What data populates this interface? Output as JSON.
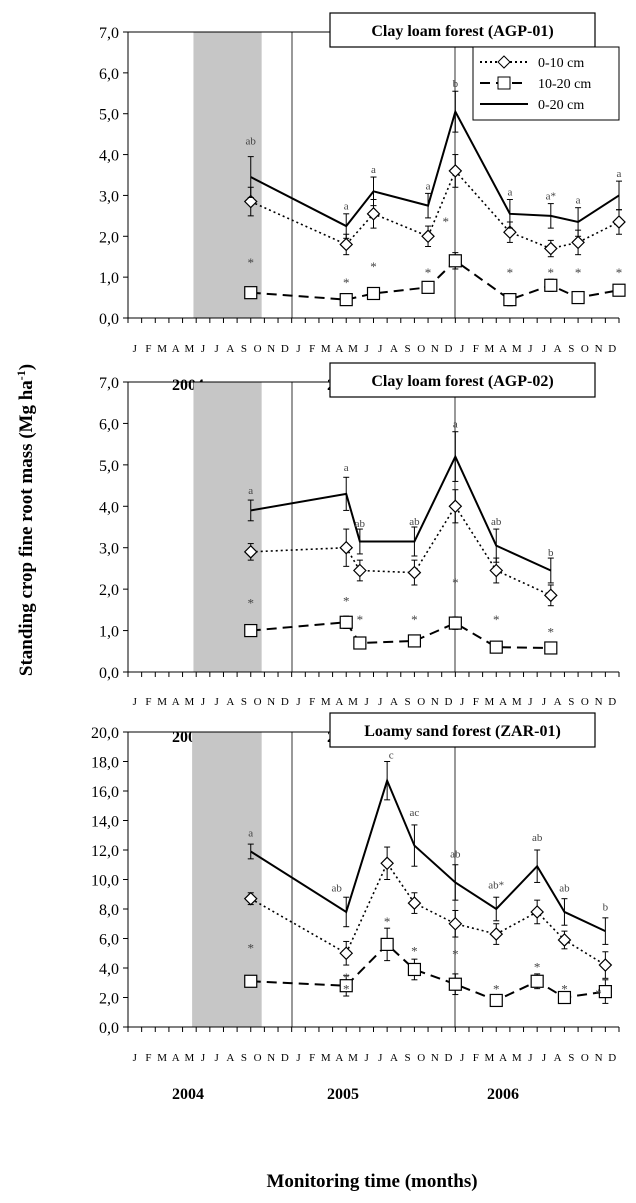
{
  "figure": {
    "ylabel": "Standing crop fine root mass (Mg ha",
    "ylabel_sup": "-1",
    "ylabel_tail": ")",
    "xlabel": "Monitoring time (months)"
  },
  "chart_data": [
    {
      "type": "line",
      "title": "Clay loam forest (AGP-01)",
      "ylim": [
        0,
        7
      ],
      "yticks": [
        "0,0",
        "1,0",
        "2,0",
        "3,0",
        "4,0",
        "5,0",
        "6,0",
        "7,0"
      ],
      "month_labels": [
        "J",
        "F",
        "M",
        "A",
        "M",
        "J",
        "J",
        "A",
        "S",
        "O",
        "N",
        "D",
        "J",
        "F",
        "M",
        "A",
        "M",
        "J",
        "J",
        "A",
        "S",
        "O",
        "N",
        "D",
        "J",
        "F",
        "M",
        "A",
        "M",
        "J",
        "J",
        "A",
        "S",
        "O",
        "N",
        "D"
      ],
      "years": [
        "2004",
        "2005",
        "2006"
      ],
      "dry_season_months": [
        4.8,
        9.8
      ],
      "series": [
        {
          "name": "0-10 cm",
          "style": "dotted",
          "marker": "diamond",
          "x": [
            9,
            16,
            18,
            22,
            24,
            28,
            31,
            33,
            36
          ],
          "values": [
            2.85,
            1.8,
            2.55,
            2.0,
            3.6,
            2.1,
            1.7,
            1.85,
            2.35
          ],
          "err": [
            0.35,
            0.25,
            0.35,
            0.25,
            0.4,
            0.25,
            0.2,
            0.3,
            0.3
          ]
        },
        {
          "name": "10-20 cm",
          "style": "dashed",
          "marker": "square",
          "x": [
            9,
            16,
            18,
            22,
            24,
            28,
            31,
            33,
            36
          ],
          "values": [
            0.62,
            0.45,
            0.6,
            0.75,
            1.4,
            0.45,
            0.8,
            0.5,
            0.68
          ],
          "err": [
            0.1,
            0.1,
            0.08,
            0.1,
            0.2,
            0.15,
            0.15,
            0.1,
            0.12
          ]
        },
        {
          "name": "0-20 cm",
          "style": "solid",
          "marker": "none",
          "x": [
            9,
            16,
            18,
            22,
            24,
            28,
            31,
            33,
            36
          ],
          "values": [
            3.45,
            2.25,
            3.1,
            2.75,
            5.05,
            2.55,
            2.5,
            2.35,
            3.0
          ],
          "err": [
            0.5,
            0.3,
            0.35,
            0.3,
            0.5,
            0.35,
            0.3,
            0.35,
            0.35
          ]
        }
      ],
      "annotations": [
        {
          "x": 9,
          "y": 4.25,
          "text": "ab"
        },
        {
          "x": 16,
          "y": 2.65,
          "text": "a"
        },
        {
          "x": 18,
          "y": 3.55,
          "text": "a"
        },
        {
          "x": 22,
          "y": 3.15,
          "text": "a"
        },
        {
          "x": 24,
          "y": 5.65,
          "text": "b"
        },
        {
          "x": 28,
          "y": 3.0,
          "text": "a"
        },
        {
          "x": 31,
          "y": 2.9,
          "text": "a*"
        },
        {
          "x": 33,
          "y": 2.8,
          "text": "a"
        },
        {
          "x": 36,
          "y": 3.45,
          "text": "a"
        },
        {
          "x": 9,
          "y": 1.45,
          "text": "*"
        },
        {
          "x": 16,
          "y": 0.95,
          "text": "*"
        },
        {
          "x": 18,
          "y": 1.35,
          "text": "*"
        },
        {
          "x": 22,
          "y": 1.2,
          "text": "*"
        },
        {
          "x": 23.3,
          "y": 2.45,
          "text": "*"
        },
        {
          "x": 28,
          "y": 1.2,
          "text": "*"
        },
        {
          "x": 31,
          "y": 1.2,
          "text": "*"
        },
        {
          "x": 33,
          "y": 1.2,
          "text": "*"
        },
        {
          "x": 36,
          "y": 1.2,
          "text": "*"
        }
      ],
      "show_legend": true
    },
    {
      "type": "line",
      "title": "Clay loam forest (AGP-02)",
      "ylim": [
        0,
        7
      ],
      "yticks": [
        "0,0",
        "1,0",
        "2,0",
        "3,0",
        "4,0",
        "5,0",
        "6,0",
        "7,0"
      ],
      "month_labels": [
        "J",
        "F",
        "M",
        "A",
        "M",
        "J",
        "J",
        "A",
        "S",
        "O",
        "N",
        "D",
        "J",
        "F",
        "M",
        "A",
        "M",
        "J",
        "J",
        "A",
        "S",
        "O",
        "N",
        "D",
        "J",
        "F",
        "M",
        "A",
        "M",
        "J",
        "J",
        "A",
        "S",
        "O",
        "N",
        "D"
      ],
      "years": [
        "2004",
        "2005",
        "2006"
      ],
      "dry_season_months": [
        4.8,
        9.8
      ],
      "series": [
        {
          "name": "0-10 cm",
          "style": "dotted",
          "marker": "diamond",
          "x": [
            9,
            16,
            17,
            21,
            24,
            27,
            31
          ],
          "values": [
            2.9,
            3.0,
            2.45,
            2.4,
            4.0,
            2.45,
            1.85
          ],
          "err": [
            0.2,
            0.45,
            0.25,
            0.3,
            0.4,
            0.3,
            0.25
          ]
        },
        {
          "name": "10-20 cm",
          "style": "dashed",
          "marker": "square",
          "x": [
            9,
            16,
            17,
            21,
            24,
            27,
            31
          ],
          "values": [
            1.0,
            1.2,
            0.7,
            0.75,
            1.18,
            0.6,
            0.58
          ],
          "err": [
            0.1,
            0.15,
            0.1,
            0.12,
            0.15,
            0.1,
            0.05
          ]
        },
        {
          "name": "0-20 cm",
          "style": "solid",
          "marker": "none",
          "x": [
            9,
            16,
            17,
            21,
            24,
            27,
            31
          ],
          "values": [
            3.9,
            4.3,
            3.15,
            3.15,
            5.2,
            3.05,
            2.45
          ],
          "err": [
            0.25,
            0.4,
            0.3,
            0.35,
            0.6,
            0.4,
            0.3
          ]
        }
      ],
      "annotations": [
        {
          "x": 9,
          "y": 4.3,
          "text": "a"
        },
        {
          "x": 16,
          "y": 4.85,
          "text": "a"
        },
        {
          "x": 17,
          "y": 3.5,
          "text": "ab"
        },
        {
          "x": 21,
          "y": 3.55,
          "text": "ab"
        },
        {
          "x": 24,
          "y": 5.9,
          "text": "a"
        },
        {
          "x": 27,
          "y": 3.55,
          "text": "ab"
        },
        {
          "x": 31,
          "y": 2.8,
          "text": "b"
        },
        {
          "x": 9,
          "y": 1.75,
          "text": "*"
        },
        {
          "x": 16,
          "y": 1.8,
          "text": "*"
        },
        {
          "x": 17,
          "y": 1.35,
          "text": "*"
        },
        {
          "x": 21,
          "y": 1.35,
          "text": "*"
        },
        {
          "x": 24,
          "y": 2.25,
          "text": "*"
        },
        {
          "x": 27,
          "y": 1.35,
          "text": "*"
        },
        {
          "x": 31,
          "y": 1.05,
          "text": "*"
        }
      ],
      "show_legend": false
    },
    {
      "type": "line",
      "title": "Loamy sand forest (ZAR-01)",
      "ylim": [
        0,
        20
      ],
      "yticks": [
        "0,0",
        "2,0",
        "4,0",
        "6,0",
        "8,0",
        "10,0",
        "12,0",
        "14,0",
        "16,0",
        "18,0",
        "20,0"
      ],
      "month_labels": [
        "J",
        "F",
        "M",
        "A",
        "M",
        "J",
        "J",
        "A",
        "S",
        "O",
        "N",
        "D",
        "J",
        "F",
        "M",
        "A",
        "M",
        "J",
        "J",
        "A",
        "S",
        "O",
        "N",
        "D",
        "J",
        "F",
        "M",
        "A",
        "M",
        "J",
        "J",
        "A",
        "S",
        "O",
        "N",
        "D"
      ],
      "years": [
        "2004",
        "2005",
        "2006"
      ],
      "dry_season_months": [
        4.7,
        9.8
      ],
      "series": [
        {
          "name": "0-10 cm",
          "style": "dotted",
          "marker": "diamond",
          "x": [
            9,
            16,
            19,
            21,
            24,
            27,
            30,
            32,
            35
          ],
          "values": [
            8.7,
            5.0,
            11.1,
            8.4,
            7.0,
            6.3,
            7.8,
            5.9,
            4.2
          ],
          "err": [
            0.4,
            0.8,
            1.1,
            0.7,
            0.9,
            0.7,
            0.8,
            0.6,
            0.9
          ]
        },
        {
          "name": "10-20 cm",
          "style": "dashed",
          "marker": "square",
          "x": [
            9,
            16,
            19,
            21,
            24,
            27,
            30,
            32,
            35
          ],
          "values": [
            3.1,
            2.8,
            5.6,
            3.9,
            2.9,
            1.8,
            3.1,
            2.0,
            2.4
          ],
          "err": [
            0.3,
            0.7,
            1.1,
            0.7,
            0.7,
            0.3,
            0.5,
            0.3,
            0.8
          ]
        },
        {
          "name": "0-20 cm",
          "style": "solid",
          "marker": "none",
          "x": [
            9,
            16,
            19,
            21,
            24,
            27,
            30,
            32,
            35
          ],
          "values": [
            11.9,
            7.8,
            16.7,
            12.3,
            9.8,
            8.0,
            10.9,
            7.8,
            6.5
          ],
          "err": [
            0.5,
            1.0,
            1.3,
            1.4,
            1.2,
            0.8,
            1.1,
            0.9,
            0.9
          ]
        }
      ],
      "annotations": [
        {
          "x": 9,
          "y": 12.9,
          "text": "a"
        },
        {
          "x": 15.3,
          "y": 9.2,
          "text": "ab"
        },
        {
          "x": 19.3,
          "y": 18.2,
          "text": "c"
        },
        {
          "x": 21,
          "y": 14.3,
          "text": "ac"
        },
        {
          "x": 24,
          "y": 11.5,
          "text": "ab"
        },
        {
          "x": 27,
          "y": 9.4,
          "text": "ab*"
        },
        {
          "x": 30,
          "y": 12.6,
          "text": "ab"
        },
        {
          "x": 32,
          "y": 9.2,
          "text": "ab"
        },
        {
          "x": 35,
          "y": 7.9,
          "text": "b"
        },
        {
          "x": 9,
          "y": 5.6,
          "text": "*"
        },
        {
          "x": 16,
          "y": 2.8,
          "text": "*"
        },
        {
          "x": 16,
          "y": 3.6,
          "text": "*"
        },
        {
          "x": 19,
          "y": 7.4,
          "text": "*"
        },
        {
          "x": 21,
          "y": 5.4,
          "text": "*"
        },
        {
          "x": 24,
          "y": 5.2,
          "text": "*"
        },
        {
          "x": 27,
          "y": 2.8,
          "text": "*"
        },
        {
          "x": 30,
          "y": 4.3,
          "text": "*"
        },
        {
          "x": 32,
          "y": 2.8,
          "text": "*"
        },
        {
          "x": 34.5,
          "y": 2.5,
          "text": "*"
        }
      ],
      "show_legend": false
    }
  ]
}
